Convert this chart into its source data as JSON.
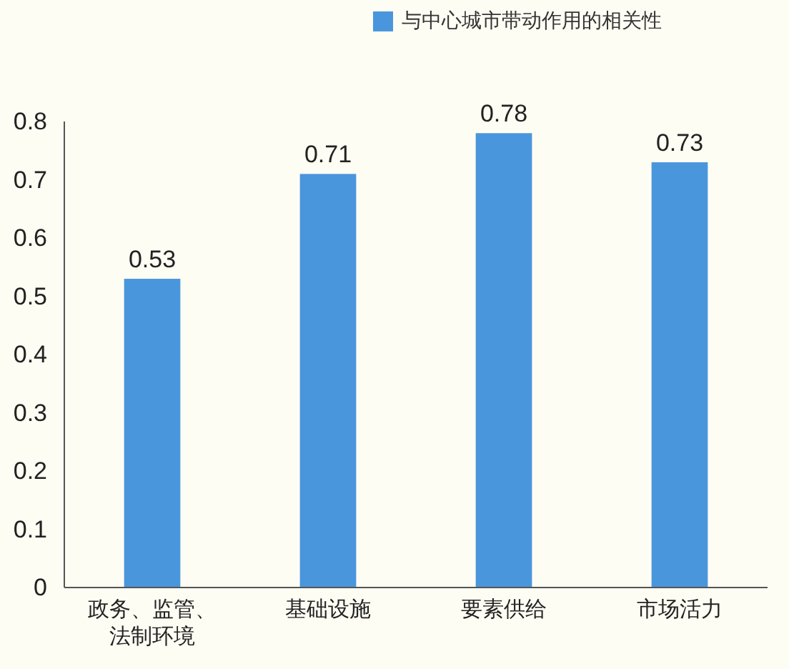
{
  "chart_data": {
    "type": "bar",
    "categories": [
      "政务、监管、法制环境",
      "基础设施",
      "要素供给",
      "市场活力"
    ],
    "series": [
      {
        "name": "与中心城市带动作用的相关性",
        "color": "#4a96dd",
        "values": [
          0.53,
          0.71,
          0.78,
          0.73
        ]
      }
    ],
    "ylim": [
      0,
      0.8
    ],
    "yticks": [
      0,
      0.1,
      0.2,
      0.3,
      0.4,
      0.5,
      0.6,
      0.7,
      0.8
    ],
    "data_labels": true,
    "legend": "top",
    "grid": false
  }
}
